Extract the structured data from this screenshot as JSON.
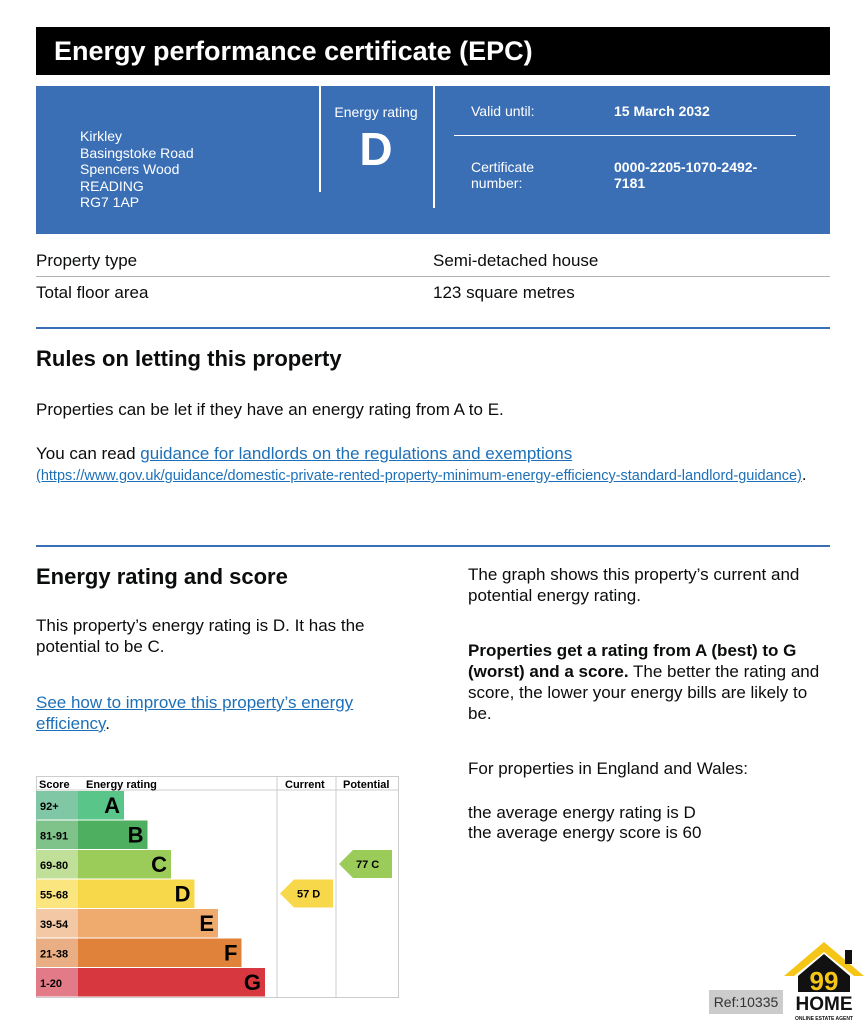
{
  "title": "Energy performance certificate (EPC)",
  "address": [
    "Kirkley",
    "Basingstoke Road",
    "Spencers Wood",
    "READING",
    "RG7 1AP"
  ],
  "energy_rating": {
    "label": "Energy rating",
    "value": "D"
  },
  "valid_until": {
    "label": "Valid until:",
    "value": "15 March 2032"
  },
  "certificate": {
    "label": [
      "Certificate",
      "number:"
    ],
    "value": [
      "0000-2205-1070-2492-",
      "7181"
    ]
  },
  "property": [
    {
      "label": "Property type",
      "value": "Semi-detached house"
    },
    {
      "label": "Total floor area",
      "value": "123 square metres"
    }
  ],
  "letting": {
    "heading": "Rules on letting this property",
    "text": "Properties can be let if they have an energy rating from A to E.",
    "read_prefix": "You can read ",
    "link": "guidance for landlords on the regulations and exemptions",
    "url": "(https://www.gov.uk/guidance/domestic-private-rented-property-minimum-energy-efficiency-standard-landlord-guidance)",
    "suffix": "."
  },
  "score": {
    "heading": "Energy rating and score",
    "text": "This property’s energy rating is D. It has the potential to be C.",
    "link": "See how to improve this property’s energy efficiency",
    "suffix": ".",
    "right_p1": "The graph shows this property’s current and potential energy rating.",
    "right_bold": "Properties get a rating from A (best) to G (worst) and a score.",
    "right_p2": " The better the rating and score, the lower your energy bills are likely to be.",
    "right_p3": "For properties in England and Wales:",
    "avg_rating": "the average energy rating is D",
    "avg_score": "the average energy score is 60"
  },
  "chart_data": {
    "type": "table",
    "headers": [
      "Score",
      "Energy rating",
      "Current",
      "Potential"
    ],
    "bands": [
      {
        "score": "92+",
        "letter": "A",
        "color": "#5ac588",
        "tint": "#80c7a6"
      },
      {
        "score": "81-91",
        "letter": "B",
        "color": "#4daf5f",
        "tint": "#7fc38b"
      },
      {
        "score": "69-80",
        "letter": "C",
        "color": "#9bcb59",
        "tint": "#c0e09a"
      },
      {
        "score": "55-68",
        "letter": "D",
        "color": "#f8d84b",
        "tint": "#fbe57f"
      },
      {
        "score": "39-54",
        "letter": "E",
        "color": "#efaa6e",
        "tint": "#f3c8a4"
      },
      {
        "score": "21-38",
        "letter": "F",
        "color": "#e0823a",
        "tint": "#e9ae84"
      },
      {
        "score": "1-20",
        "letter": "G",
        "color": "#d7383f",
        "tint": "#e37a87"
      }
    ],
    "current": {
      "score": 57,
      "letter": "D",
      "label": "57  D"
    },
    "potential": {
      "score": 77,
      "letter": "C",
      "label": "77  C"
    }
  },
  "logo": {
    "text": "99 HOME",
    "sub": "ONLINE ESTATE AGENT"
  },
  "ref": "Ref:10335"
}
